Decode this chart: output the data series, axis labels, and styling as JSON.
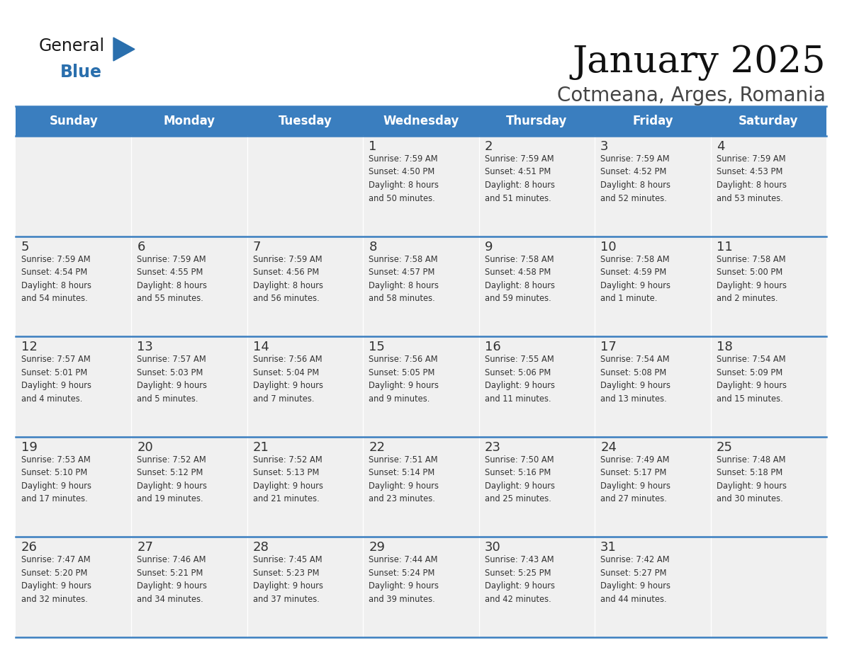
{
  "title": "January 2025",
  "subtitle": "Cotmeana, Arges, Romania",
  "days_of_week": [
    "Sunday",
    "Monday",
    "Tuesday",
    "Wednesday",
    "Thursday",
    "Friday",
    "Saturday"
  ],
  "header_bg": "#3a7ebf",
  "header_text": "#ffffff",
  "row_bg": "#f0f0f0",
  "day_num_color": "#333333",
  "cell_text_color": "#333333",
  "divider_color": "#3a7ebf",
  "title_color": "#111111",
  "subtitle_color": "#444444",
  "logo_general_color": "#1a1a1a",
  "logo_blue_color": "#2a6fad",
  "weeks": [
    [
      {
        "day": null,
        "info": null
      },
      {
        "day": null,
        "info": null
      },
      {
        "day": null,
        "info": null
      },
      {
        "day": 1,
        "info": "Sunrise: 7:59 AM\nSunset: 4:50 PM\nDaylight: 8 hours\nand 50 minutes."
      },
      {
        "day": 2,
        "info": "Sunrise: 7:59 AM\nSunset: 4:51 PM\nDaylight: 8 hours\nand 51 minutes."
      },
      {
        "day": 3,
        "info": "Sunrise: 7:59 AM\nSunset: 4:52 PM\nDaylight: 8 hours\nand 52 minutes."
      },
      {
        "day": 4,
        "info": "Sunrise: 7:59 AM\nSunset: 4:53 PM\nDaylight: 8 hours\nand 53 minutes."
      }
    ],
    [
      {
        "day": 5,
        "info": "Sunrise: 7:59 AM\nSunset: 4:54 PM\nDaylight: 8 hours\nand 54 minutes."
      },
      {
        "day": 6,
        "info": "Sunrise: 7:59 AM\nSunset: 4:55 PM\nDaylight: 8 hours\nand 55 minutes."
      },
      {
        "day": 7,
        "info": "Sunrise: 7:59 AM\nSunset: 4:56 PM\nDaylight: 8 hours\nand 56 minutes."
      },
      {
        "day": 8,
        "info": "Sunrise: 7:58 AM\nSunset: 4:57 PM\nDaylight: 8 hours\nand 58 minutes."
      },
      {
        "day": 9,
        "info": "Sunrise: 7:58 AM\nSunset: 4:58 PM\nDaylight: 8 hours\nand 59 minutes."
      },
      {
        "day": 10,
        "info": "Sunrise: 7:58 AM\nSunset: 4:59 PM\nDaylight: 9 hours\nand 1 minute."
      },
      {
        "day": 11,
        "info": "Sunrise: 7:58 AM\nSunset: 5:00 PM\nDaylight: 9 hours\nand 2 minutes."
      }
    ],
    [
      {
        "day": 12,
        "info": "Sunrise: 7:57 AM\nSunset: 5:01 PM\nDaylight: 9 hours\nand 4 minutes."
      },
      {
        "day": 13,
        "info": "Sunrise: 7:57 AM\nSunset: 5:03 PM\nDaylight: 9 hours\nand 5 minutes."
      },
      {
        "day": 14,
        "info": "Sunrise: 7:56 AM\nSunset: 5:04 PM\nDaylight: 9 hours\nand 7 minutes."
      },
      {
        "day": 15,
        "info": "Sunrise: 7:56 AM\nSunset: 5:05 PM\nDaylight: 9 hours\nand 9 minutes."
      },
      {
        "day": 16,
        "info": "Sunrise: 7:55 AM\nSunset: 5:06 PM\nDaylight: 9 hours\nand 11 minutes."
      },
      {
        "day": 17,
        "info": "Sunrise: 7:54 AM\nSunset: 5:08 PM\nDaylight: 9 hours\nand 13 minutes."
      },
      {
        "day": 18,
        "info": "Sunrise: 7:54 AM\nSunset: 5:09 PM\nDaylight: 9 hours\nand 15 minutes."
      }
    ],
    [
      {
        "day": 19,
        "info": "Sunrise: 7:53 AM\nSunset: 5:10 PM\nDaylight: 9 hours\nand 17 minutes."
      },
      {
        "day": 20,
        "info": "Sunrise: 7:52 AM\nSunset: 5:12 PM\nDaylight: 9 hours\nand 19 minutes."
      },
      {
        "day": 21,
        "info": "Sunrise: 7:52 AM\nSunset: 5:13 PM\nDaylight: 9 hours\nand 21 minutes."
      },
      {
        "day": 22,
        "info": "Sunrise: 7:51 AM\nSunset: 5:14 PM\nDaylight: 9 hours\nand 23 minutes."
      },
      {
        "day": 23,
        "info": "Sunrise: 7:50 AM\nSunset: 5:16 PM\nDaylight: 9 hours\nand 25 minutes."
      },
      {
        "day": 24,
        "info": "Sunrise: 7:49 AM\nSunset: 5:17 PM\nDaylight: 9 hours\nand 27 minutes."
      },
      {
        "day": 25,
        "info": "Sunrise: 7:48 AM\nSunset: 5:18 PM\nDaylight: 9 hours\nand 30 minutes."
      }
    ],
    [
      {
        "day": 26,
        "info": "Sunrise: 7:47 AM\nSunset: 5:20 PM\nDaylight: 9 hours\nand 32 minutes."
      },
      {
        "day": 27,
        "info": "Sunrise: 7:46 AM\nSunset: 5:21 PM\nDaylight: 9 hours\nand 34 minutes."
      },
      {
        "day": 28,
        "info": "Sunrise: 7:45 AM\nSunset: 5:23 PM\nDaylight: 9 hours\nand 37 minutes."
      },
      {
        "day": 29,
        "info": "Sunrise: 7:44 AM\nSunset: 5:24 PM\nDaylight: 9 hours\nand 39 minutes."
      },
      {
        "day": 30,
        "info": "Sunrise: 7:43 AM\nSunset: 5:25 PM\nDaylight: 9 hours\nand 42 minutes."
      },
      {
        "day": 31,
        "info": "Sunrise: 7:42 AM\nSunset: 5:27 PM\nDaylight: 9 hours\nand 44 minutes."
      },
      {
        "day": null,
        "info": null
      }
    ]
  ]
}
